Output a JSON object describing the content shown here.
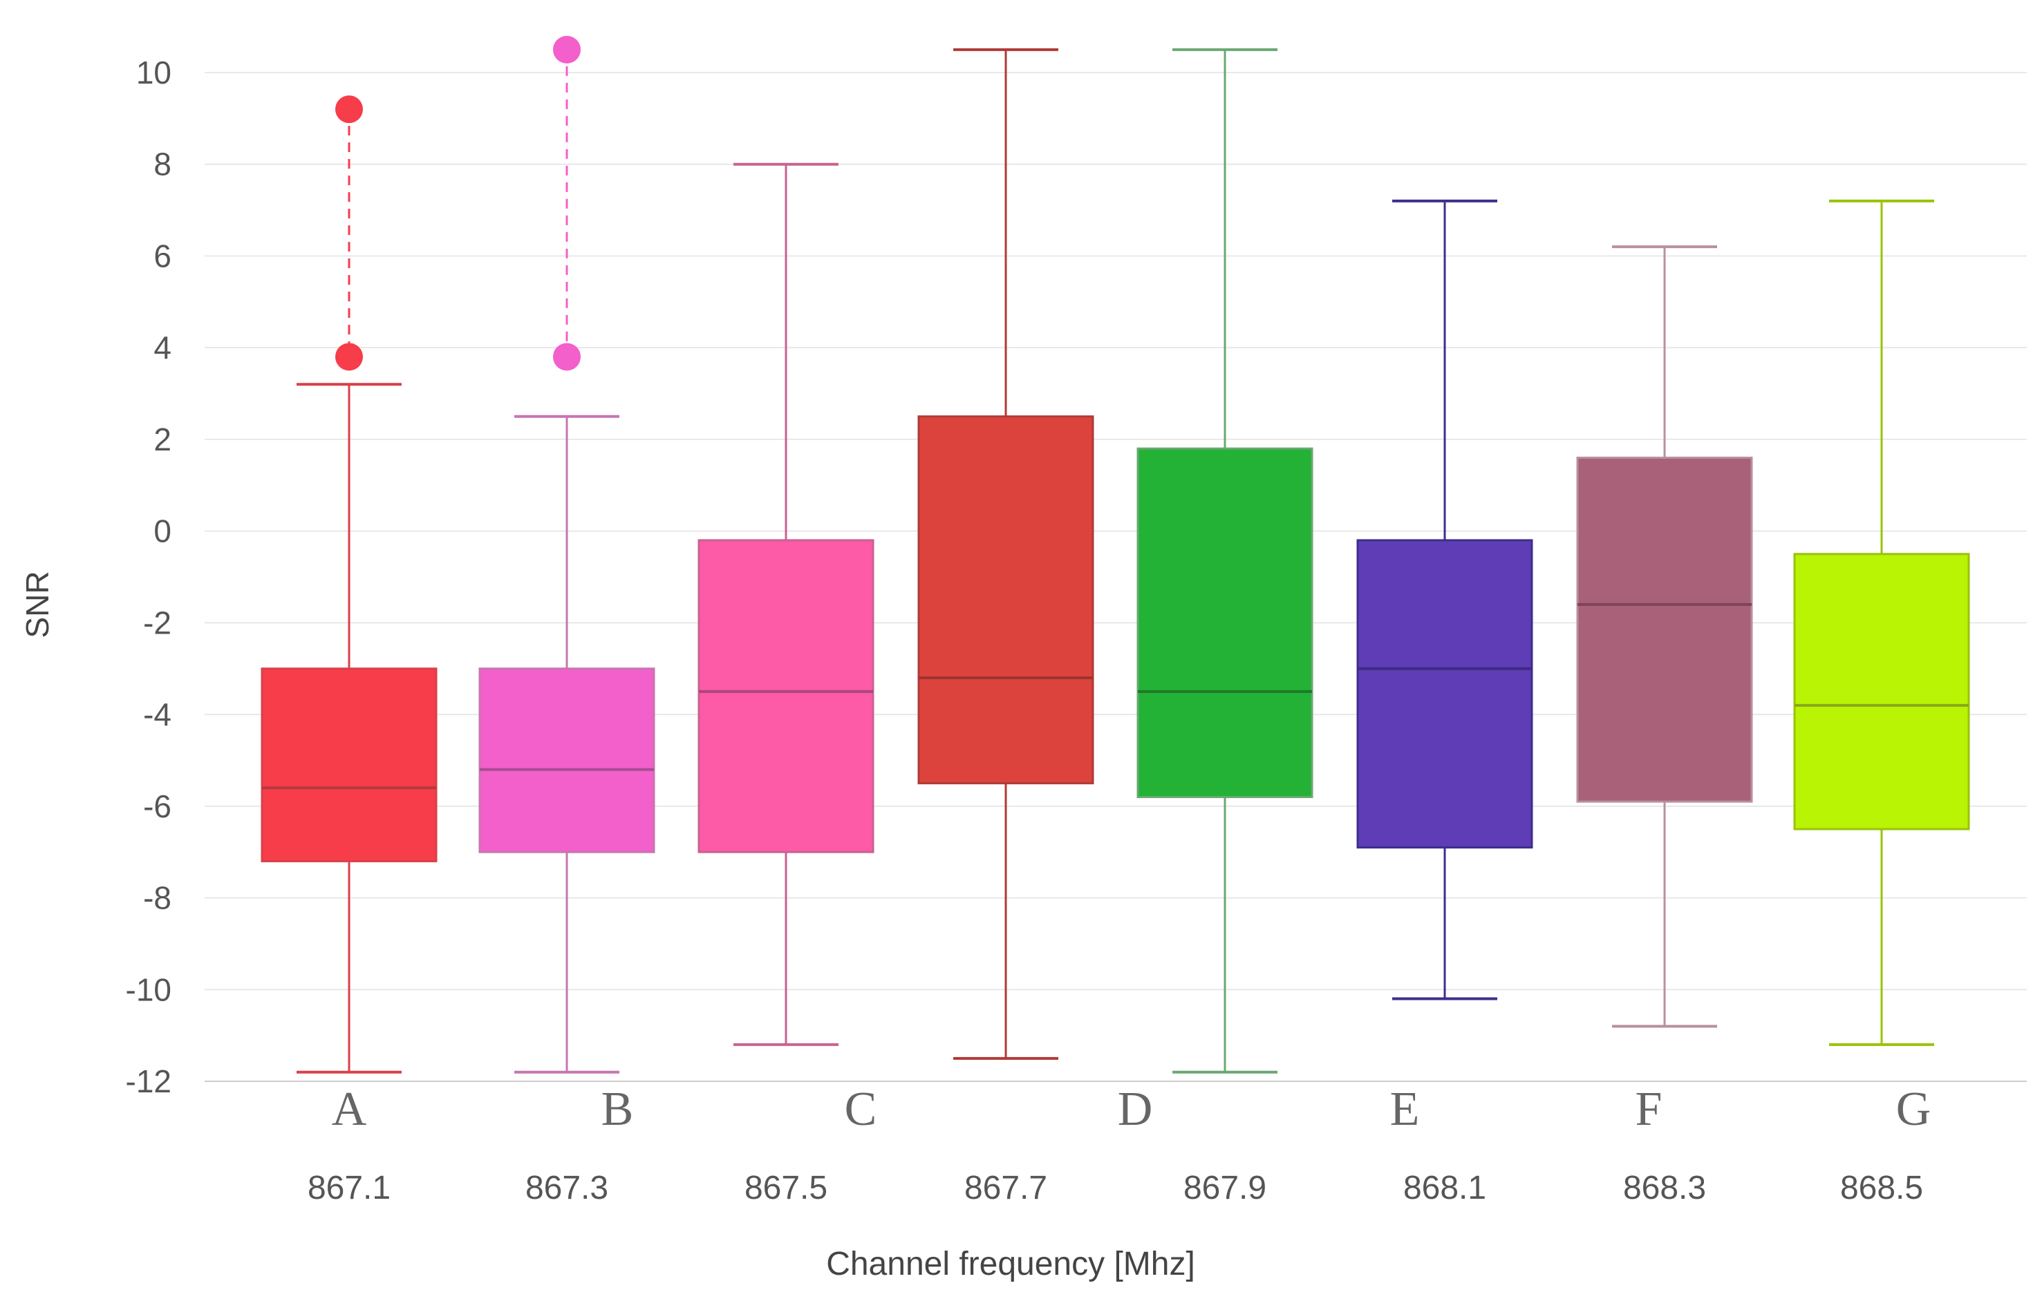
{
  "chart_data": {
    "type": "box",
    "title": "",
    "xlabel": "Channel frequency [Mhz]",
    "ylabel": "SNR",
    "ylim": [
      -12,
      10.8
    ],
    "yticks": [
      10,
      8,
      6,
      4,
      2,
      0,
      -2,
      -4,
      -6,
      -8,
      -10,
      -12
    ],
    "ytick_labels": [
      "10",
      "8",
      "6",
      "4",
      "2",
      "0",
      "-2",
      "-4",
      "-6",
      "-8",
      "-10",
      "-12"
    ],
    "grid": true,
    "letters": [
      "A",
      "B",
      "C",
      "D",
      "E",
      "F",
      "G"
    ],
    "categories": [
      "867.1",
      "867.3",
      "867.5",
      "867.7",
      "867.9",
      "868.1",
      "868.3",
      "868.5"
    ],
    "boxes": [
      {
        "category": "867.1",
        "min": -11.8,
        "q1": -7.2,
        "median": -5.6,
        "q3": -3.0,
        "max": 3.2,
        "outlier_range": [
          3.8,
          9.2
        ],
        "fill": "#f73c4a",
        "stroke": "#d9404a",
        "median_color": "#b33a40",
        "dashed": true
      },
      {
        "category": "867.3",
        "min": -11.8,
        "q1": -7.0,
        "median": -5.2,
        "q3": -3.0,
        "max": 2.5,
        "outlier_range": [
          3.8,
          10.5
        ],
        "fill": "#f35fcb",
        "stroke": "#c775b0",
        "median_color": "#a84d90",
        "dashed": true
      },
      {
        "category": "867.5",
        "min": -11.2,
        "q1": -7.0,
        "median": -3.5,
        "q3": -0.2,
        "max": 8.0,
        "outlier_range": null,
        "fill": "#fd5aa8",
        "stroke": "#c9628f",
        "median_color": "#a8487a",
        "dashed": false
      },
      {
        "category": "867.7",
        "min": -11.5,
        "q1": -5.5,
        "median": -3.2,
        "q3": 2.5,
        "max": 10.5,
        "outlier_range": null,
        "fill": "#dc433d",
        "stroke": "#b03a35",
        "median_color": "#9c3430",
        "dashed": false
      },
      {
        "category": "867.9",
        "min": -11.8,
        "q1": -5.8,
        "median": -3.5,
        "q3": 1.8,
        "max": 10.5,
        "outlier_range": null,
        "fill": "#23b236",
        "stroke": "#6aa873",
        "median_color": "#1d7a2a",
        "dashed": false
      },
      {
        "category": "868.1",
        "min": -10.2,
        "q1": -6.9,
        "median": -3.0,
        "q3": -0.2,
        "max": 7.2,
        "outlier_range": null,
        "fill": "#5e3db6",
        "stroke": "#3d2f8c",
        "median_color": "#3f2a82",
        "dashed": false
      },
      {
        "category": "868.3",
        "min": -10.8,
        "q1": -5.9,
        "median": -1.6,
        "q3": 1.6,
        "max": 6.2,
        "outlier_range": null,
        "fill": "#a96079",
        "stroke": "#b8909e",
        "median_color": "#7d4558",
        "dashed": false
      },
      {
        "category": "868.5",
        "min": -11.2,
        "q1": -6.5,
        "median": -3.8,
        "q3": -0.5,
        "max": 7.2,
        "outlier_range": null,
        "fill": "#b8f403",
        "stroke": "#9ac20a",
        "median_color": "#8aa81a",
        "dashed": false
      }
    ]
  }
}
